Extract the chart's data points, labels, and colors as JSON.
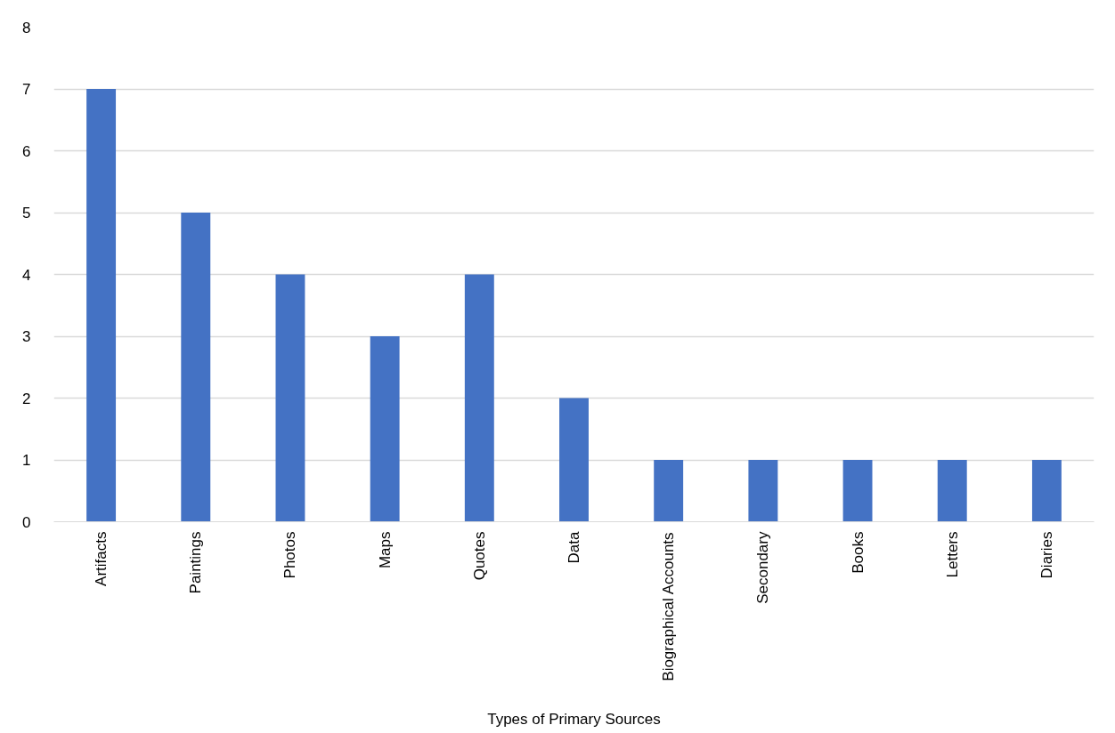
{
  "chart_data": {
    "type": "bar",
    "xlabel": "Types of Primary Sources",
    "categories": [
      "Artifacts",
      "Paintings",
      "Photos",
      "Maps",
      "Quotes",
      "Data",
      "Biographical Accounts",
      "Secondary",
      "Books",
      "Letters",
      "Diaries"
    ],
    "values": [
      7,
      5,
      4,
      3,
      4,
      2,
      1,
      1,
      1,
      1,
      1
    ],
    "color": "#4472c4",
    "ylim": [
      0,
      8
    ],
    "yticks": [
      0,
      1,
      2,
      3,
      4,
      5,
      6,
      7,
      8
    ],
    "grid": "y"
  }
}
